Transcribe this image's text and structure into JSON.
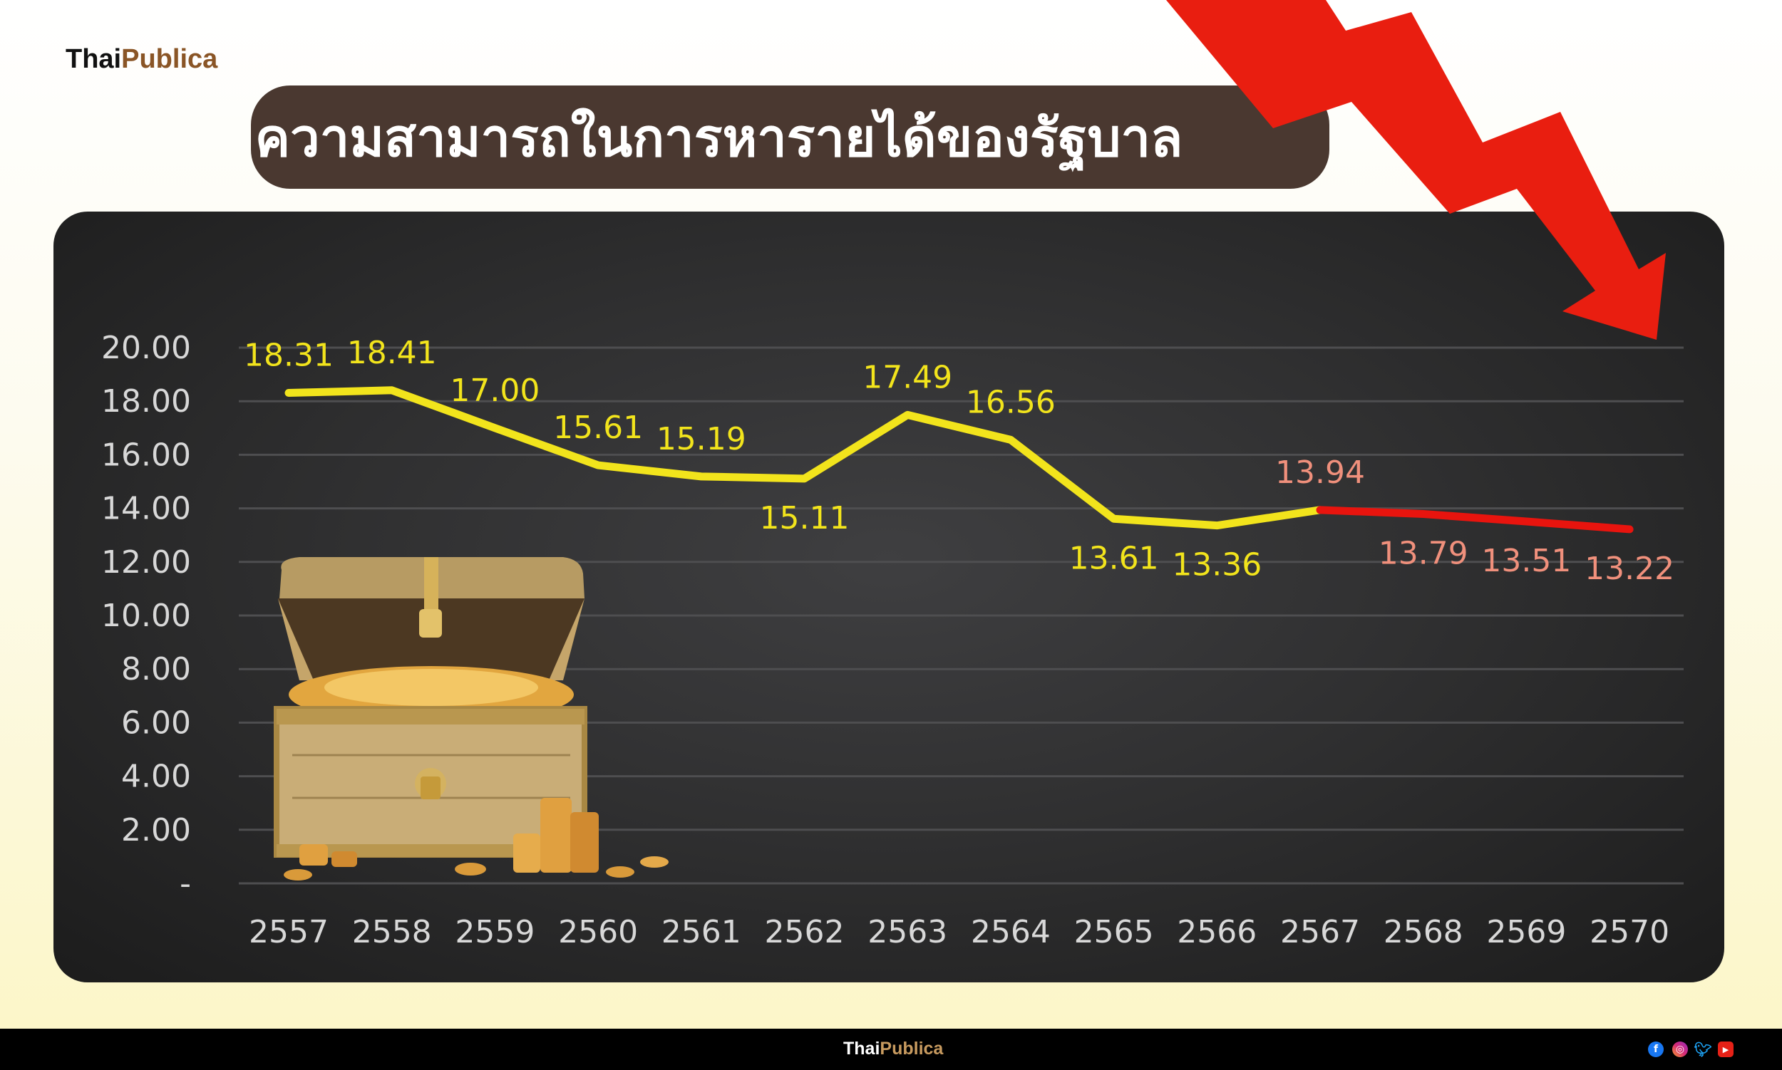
{
  "brand": {
    "logo_part1": "Thai",
    "logo_part2": "Publica"
  },
  "header": {
    "title": "ความสามารถในการหารายได้ของรัฐบาล"
  },
  "footer": {
    "logo_part1": "Thai",
    "logo_part2": "Publica",
    "social_icons": [
      "facebook-icon",
      "instagram-icon",
      "twitter-icon",
      "youtube-icon"
    ]
  },
  "colors": {
    "actual_line": "#f2e41c",
    "forecast_line": "#e8140e",
    "actual_label": "#f2e41c",
    "forecast_label": "#f0907c",
    "arrow": "#e91e10",
    "title_bg": "#4a3830"
  },
  "chart_data": {
    "type": "line",
    "title": "ความสามารถในการหารายได้ของรัฐบาล",
    "xlabel": "",
    "ylabel": "",
    "categories": [
      "2557",
      "2558",
      "2559",
      "2560",
      "2561",
      "2562",
      "2563",
      "2564",
      "2565",
      "2566",
      "2567",
      "2568",
      "2569",
      "2570"
    ],
    "values": [
      18.31,
      18.41,
      17.0,
      15.61,
      15.19,
      15.11,
      17.49,
      16.56,
      13.61,
      13.36,
      13.94,
      13.79,
      13.51,
      13.22
    ],
    "value_labels": [
      "18.31",
      "18.41",
      "17.00",
      "15.61",
      "15.19",
      "15.11",
      "17.49",
      "16.56",
      "13.61",
      "13.36",
      "13.94",
      "13.79",
      "13.51",
      "13.22"
    ],
    "segments": [
      {
        "from": "2557",
        "to": "2567",
        "color": "#f2e41c"
      },
      {
        "from": "2567",
        "to": "2570",
        "color": "#e8140e"
      }
    ],
    "ylim": [
      0,
      20
    ],
    "yticks": [
      0,
      2,
      4,
      6,
      8,
      10,
      12,
      14,
      16,
      18,
      20
    ],
    "ytick_labels": [
      "-",
      "2.00",
      "4.00",
      "6.00",
      "8.00",
      "10.00",
      "12.00",
      "14.00",
      "16.00",
      "18.00",
      "20.00"
    ],
    "grid": true,
    "legend": "none",
    "decoration": [
      "treasure-chest",
      "red-down-arrow"
    ]
  }
}
